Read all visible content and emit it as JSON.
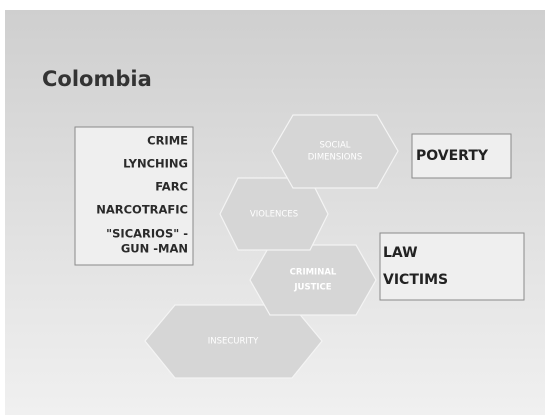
{
  "title": "Colombia",
  "list": [
    [
      "CRIME"
    ],
    [
      "LYNCHING"
    ],
    [
      "FARC"
    ],
    [
      "NARCOTRAFIC"
    ],
    [
      "\"SICARIOS\" -",
      "GUN -MAN"
    ]
  ],
  "hexagons": [
    {
      "lines": [
        "SOCIAL",
        "DIMENSIONS"
      ]
    },
    {
      "lines": [
        "VIOLENCES"
      ]
    },
    {
      "lines": [
        "CRIMINAL",
        "JUSTICE"
      ]
    },
    {
      "lines": [
        "INSECURITY"
      ]
    }
  ],
  "boxes": [
    {
      "lines": [
        "POVERTY"
      ]
    },
    {
      "lines": [
        "LAW",
        "VICTIMS"
      ]
    }
  ]
}
